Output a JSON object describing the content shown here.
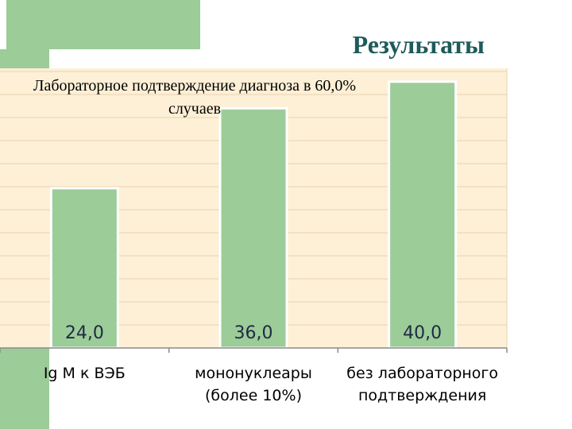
{
  "title": "Результаты",
  "chart_data": {
    "type": "bar",
    "title": "Лабораторное подтверждение диагноза в 60,0% случаев",
    "categories": [
      "Ig M к ВЭБ",
      "мононуклеары (более 10%)",
      "без лабораторного подтверждения"
    ],
    "values": [
      24.0,
      36.0,
      40.0
    ],
    "value_labels": [
      "24,0",
      "36,0",
      "40,0"
    ],
    "xlabel": "",
    "ylabel": "",
    "ylim": [
      0,
      42
    ],
    "grid": true,
    "legend": "none",
    "bar_color": "#9ccc98",
    "background_color": "#fdf0d6"
  },
  "theme": {
    "accent": "#9ccc98",
    "title_color": "#1e5a5a"
  }
}
